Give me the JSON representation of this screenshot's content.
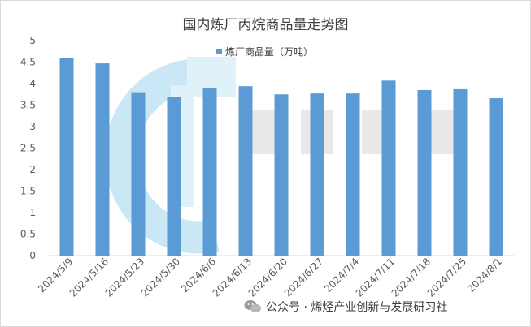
{
  "chart_data": {
    "type": "bar",
    "title": "国内炼厂丙烷商品量走势图",
    "series": [
      {
        "name": "炼厂商品量（万吨）",
        "color": "#5b9bd5",
        "values": [
          4.6,
          4.47,
          3.8,
          3.68,
          3.9,
          3.94,
          3.75,
          3.77,
          3.77,
          4.07,
          3.85,
          3.87,
          3.66
        ]
      }
    ],
    "categories": [
      "2024/5/9",
      "2024/5/16",
      "2024/5/23",
      "2024/5/30",
      "2024/6/6",
      "2024/6/13",
      "2024/6/20",
      "2024/6/27",
      "2024/7/4",
      "2024/7/11",
      "2024/7/18",
      "2024/7/25",
      "2024/8/1"
    ],
    "ylim": [
      0,
      5
    ],
    "yticks": [
      "0",
      "0.5",
      "1",
      "1.5",
      "2",
      "2.5",
      "3",
      "3.5",
      "4",
      "4.5",
      "5"
    ],
    "grid": false,
    "legend_position": "top-center"
  },
  "footer": {
    "text": "公众号 · 烯烃产业创新与发展研习社",
    "icon": "wechat-icon"
  }
}
